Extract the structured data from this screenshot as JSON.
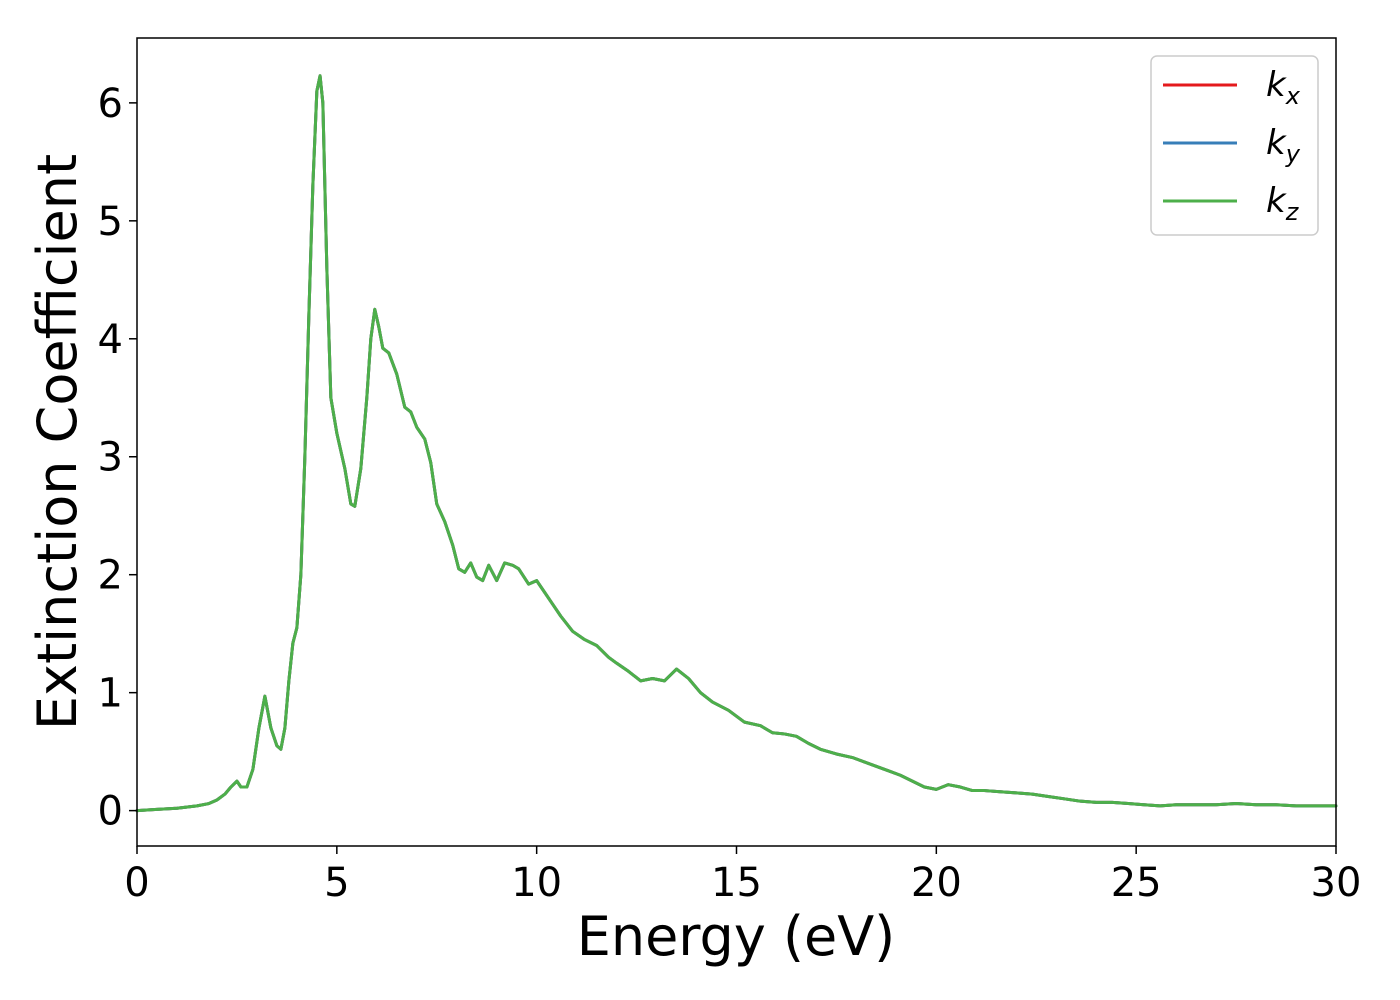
{
  "chart_data": {
    "type": "line",
    "xlabel": "Energy (eV)",
    "ylabel": "Extinction Coefficient",
    "xlim": [
      0,
      30
    ],
    "ylim": [
      -0.3,
      6.55
    ],
    "xticks": [
      "0",
      "5",
      "10",
      "15",
      "20",
      "25",
      "30"
    ],
    "yticks": [
      "0",
      "1",
      "2",
      "3",
      "4",
      "5",
      "6"
    ],
    "grid": false,
    "legend_position": "top-right",
    "legend": [
      {
        "base": "k",
        "sub": "x",
        "color": "#e41a1c"
      },
      {
        "base": "k",
        "sub": "y",
        "color": "#377eb8"
      },
      {
        "base": "k",
        "sub": "z",
        "color": "#4daf4a"
      }
    ],
    "x": [
      0,
      0.5,
      1.0,
      1.5,
      1.8,
      2.0,
      2.2,
      2.35,
      2.5,
      2.6,
      2.75,
      2.9,
      3.05,
      3.2,
      3.35,
      3.5,
      3.6,
      3.7,
      3.8,
      3.9,
      4.0,
      4.1,
      4.2,
      4.3,
      4.4,
      4.5,
      4.58,
      4.65,
      4.75,
      4.85,
      5.0,
      5.2,
      5.35,
      5.45,
      5.6,
      5.75,
      5.85,
      5.95,
      6.05,
      6.15,
      6.3,
      6.5,
      6.7,
      6.85,
      7.0,
      7.2,
      7.35,
      7.5,
      7.7,
      7.9,
      8.05,
      8.2,
      8.35,
      8.5,
      8.65,
      8.8,
      9.0,
      9.2,
      9.4,
      9.55,
      9.8,
      10.0,
      10.2,
      10.4,
      10.6,
      10.9,
      11.2,
      11.5,
      11.8,
      12.0,
      12.3,
      12.6,
      12.9,
      13.2,
      13.5,
      13.8,
      14.1,
      14.4,
      14.8,
      15.2,
      15.6,
      15.9,
      16.2,
      16.5,
      16.8,
      17.1,
      17.5,
      17.9,
      18.3,
      18.7,
      19.1,
      19.4,
      19.7,
      20.0,
      20.3,
      20.6,
      20.9,
      21.2,
      21.6,
      22.0,
      22.4,
      22.8,
      23.2,
      23.6,
      24.0,
      24.4,
      24.8,
      25.2,
      25.6,
      26.0,
      26.5,
      27.0,
      27.5,
      28.0,
      28.5,
      29.0,
      29.5,
      30.0
    ],
    "series": [
      {
        "name": "k_x",
        "color": "#e41a1c",
        "values": [
          0,
          0.01,
          0.02,
          0.04,
          0.06,
          0.09,
          0.14,
          0.2,
          0.25,
          0.2,
          0.2,
          0.35,
          0.7,
          0.97,
          0.7,
          0.55,
          0.52,
          0.7,
          1.1,
          1.42,
          1.55,
          2.0,
          3.0,
          4.2,
          5.3,
          6.1,
          6.23,
          6.0,
          4.6,
          3.5,
          3.2,
          2.9,
          2.6,
          2.58,
          2.9,
          3.5,
          4.0,
          4.25,
          4.1,
          3.92,
          3.88,
          3.7,
          3.42,
          3.38,
          3.25,
          3.15,
          2.95,
          2.6,
          2.45,
          2.25,
          2.05,
          2.02,
          2.1,
          1.98,
          1.95,
          2.08,
          1.95,
          2.1,
          2.08,
          2.05,
          1.92,
          1.95,
          1.85,
          1.75,
          1.65,
          1.52,
          1.45,
          1.4,
          1.3,
          1.25,
          1.18,
          1.1,
          1.12,
          1.1,
          1.2,
          1.12,
          1.0,
          0.92,
          0.85,
          0.75,
          0.72,
          0.66,
          0.65,
          0.63,
          0.57,
          0.52,
          0.48,
          0.45,
          0.4,
          0.35,
          0.3,
          0.25,
          0.2,
          0.18,
          0.22,
          0.2,
          0.17,
          0.17,
          0.16,
          0.15,
          0.14,
          0.12,
          0.1,
          0.08,
          0.07,
          0.07,
          0.06,
          0.05,
          0.04,
          0.05,
          0.05,
          0.05,
          0.06,
          0.05,
          0.05,
          0.04,
          0.04,
          0.04
        ]
      },
      {
        "name": "k_y",
        "color": "#377eb8",
        "values": [
          0,
          0.01,
          0.02,
          0.04,
          0.06,
          0.09,
          0.14,
          0.2,
          0.25,
          0.2,
          0.2,
          0.35,
          0.7,
          0.97,
          0.7,
          0.55,
          0.52,
          0.7,
          1.1,
          1.42,
          1.55,
          2.0,
          3.0,
          4.2,
          5.3,
          6.1,
          6.23,
          6.0,
          4.6,
          3.5,
          3.2,
          2.9,
          2.6,
          2.58,
          2.9,
          3.5,
          4.0,
          4.25,
          4.1,
          3.92,
          3.88,
          3.7,
          3.42,
          3.38,
          3.25,
          3.15,
          2.95,
          2.6,
          2.45,
          2.25,
          2.05,
          2.02,
          2.1,
          1.98,
          1.95,
          2.08,
          1.95,
          2.1,
          2.08,
          2.05,
          1.92,
          1.95,
          1.85,
          1.75,
          1.65,
          1.52,
          1.45,
          1.4,
          1.3,
          1.25,
          1.18,
          1.1,
          1.12,
          1.1,
          1.2,
          1.12,
          1.0,
          0.92,
          0.85,
          0.75,
          0.72,
          0.66,
          0.65,
          0.63,
          0.57,
          0.52,
          0.48,
          0.45,
          0.4,
          0.35,
          0.3,
          0.25,
          0.2,
          0.18,
          0.22,
          0.2,
          0.17,
          0.17,
          0.16,
          0.15,
          0.14,
          0.12,
          0.1,
          0.08,
          0.07,
          0.07,
          0.06,
          0.05,
          0.04,
          0.05,
          0.05,
          0.05,
          0.06,
          0.05,
          0.05,
          0.04,
          0.04,
          0.04
        ]
      },
      {
        "name": "k_z",
        "color": "#4daf4a",
        "values": [
          0,
          0.01,
          0.02,
          0.04,
          0.06,
          0.09,
          0.14,
          0.2,
          0.25,
          0.2,
          0.2,
          0.35,
          0.7,
          0.97,
          0.7,
          0.55,
          0.52,
          0.7,
          1.1,
          1.42,
          1.55,
          2.0,
          3.0,
          4.2,
          5.3,
          6.1,
          6.23,
          6.0,
          4.6,
          3.5,
          3.2,
          2.9,
          2.6,
          2.58,
          2.9,
          3.5,
          4.0,
          4.25,
          4.1,
          3.92,
          3.88,
          3.7,
          3.42,
          3.38,
          3.25,
          3.15,
          2.95,
          2.6,
          2.45,
          2.25,
          2.05,
          2.02,
          2.1,
          1.98,
          1.95,
          2.08,
          1.95,
          2.1,
          2.08,
          2.05,
          1.92,
          1.95,
          1.85,
          1.75,
          1.65,
          1.52,
          1.45,
          1.4,
          1.3,
          1.25,
          1.18,
          1.1,
          1.12,
          1.1,
          1.2,
          1.12,
          1.0,
          0.92,
          0.85,
          0.75,
          0.72,
          0.66,
          0.65,
          0.63,
          0.57,
          0.52,
          0.48,
          0.45,
          0.4,
          0.35,
          0.3,
          0.25,
          0.2,
          0.18,
          0.22,
          0.2,
          0.17,
          0.17,
          0.16,
          0.15,
          0.14,
          0.12,
          0.1,
          0.08,
          0.07,
          0.07,
          0.06,
          0.05,
          0.04,
          0.05,
          0.05,
          0.05,
          0.06,
          0.05,
          0.05,
          0.04,
          0.04,
          0.04
        ]
      }
    ]
  }
}
